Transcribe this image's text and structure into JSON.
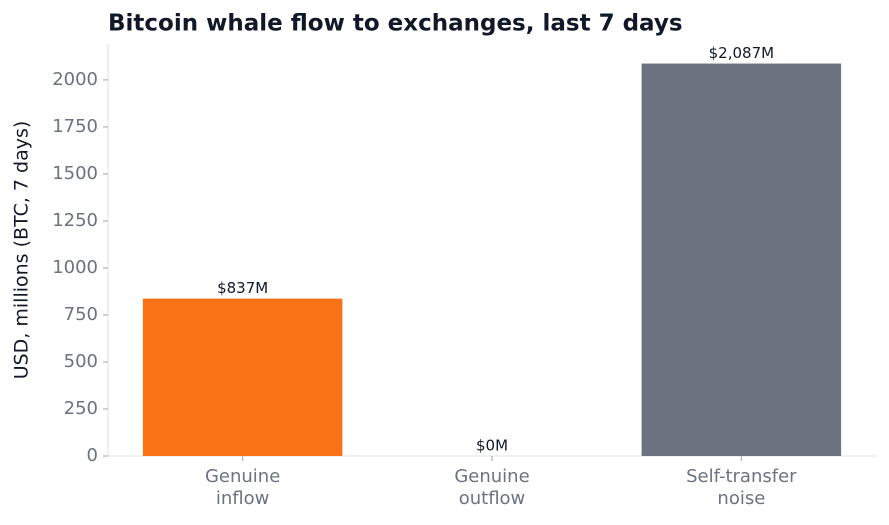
{
  "chart_data": {
    "type": "bar",
    "title": "Bitcoin whale flow to exchanges, last 7 days",
    "y_label": "USD, millions (BTC, 7 days)",
    "categories": [
      "Genuine\ninflow",
      "Genuine\noutflow",
      "Self-transfer\nnoise"
    ],
    "values": [
      837,
      0,
      2087
    ],
    "value_labels": [
      "$837M",
      "$0M",
      "$2,087M"
    ],
    "colors": [
      "#f97316",
      "#6b7280",
      "#6b7280"
    ],
    "ylim": [
      0,
      2191
    ],
    "yticks": [
      0,
      250,
      500,
      750,
      1000,
      1250,
      1500,
      1750,
      2000
    ],
    "grid": false
  }
}
